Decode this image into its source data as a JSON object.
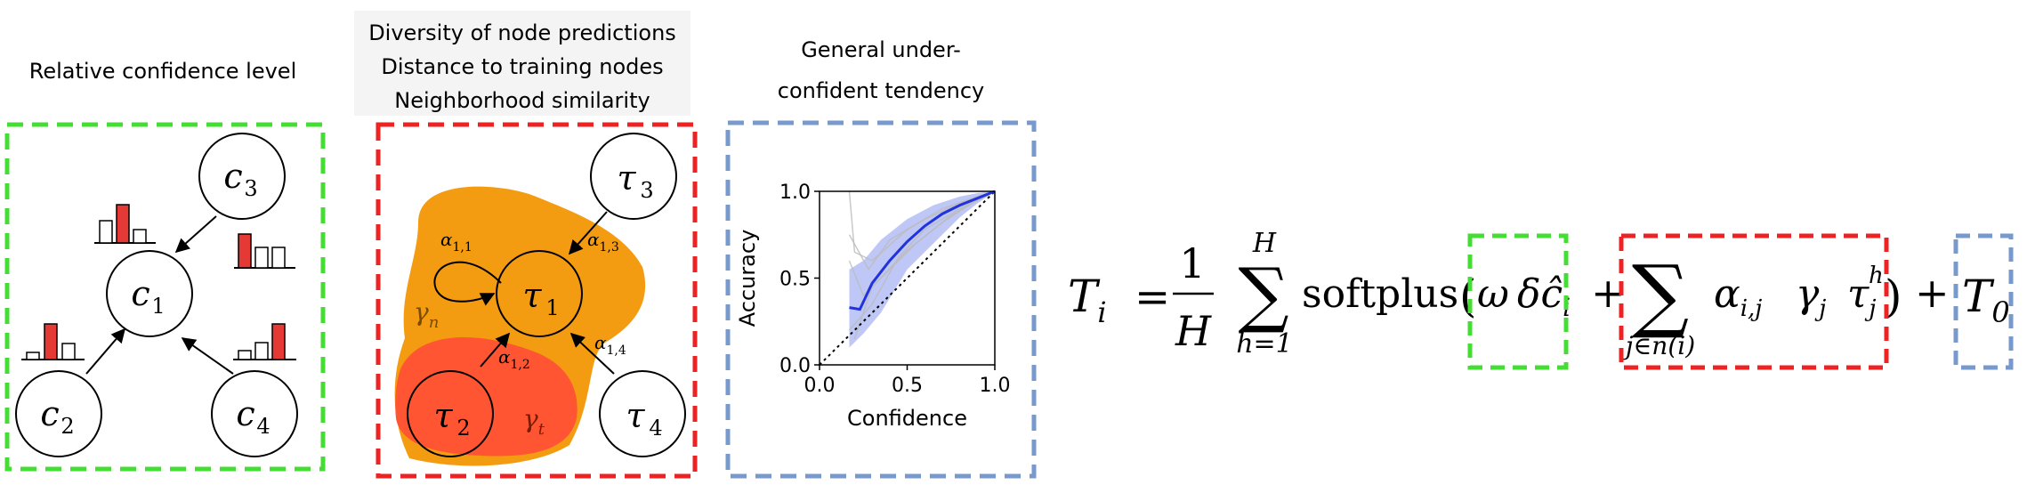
{
  "panel1": {
    "title": "Relative confidence level",
    "box_color": "#44dd33",
    "nodes": [
      {
        "base": "c",
        "sub": "1"
      },
      {
        "base": "c",
        "sub": "2"
      },
      {
        "base": "c",
        "sub": "3"
      },
      {
        "base": "c",
        "sub": "4"
      }
    ],
    "bar_color": "#e53935"
  },
  "panel2": {
    "title_lines": [
      "Diversity of node predictions",
      "Distance to training nodes",
      "Neighborhood similarity"
    ],
    "box_color": "#ee2222",
    "nodes": [
      {
        "base": "τ",
        "sub": "1"
      },
      {
        "base": "τ",
        "sub": "2"
      },
      {
        "base": "τ",
        "sub": "3"
      },
      {
        "base": "τ",
        "sub": "4"
      }
    ],
    "edge_labels": [
      "α",
      "1,1",
      "α",
      "1,3",
      "α",
      "1,2",
      "α",
      "1,4"
    ],
    "region_labels": {
      "outer": "γ",
      "outer_sub": "n",
      "inner": "γ",
      "inner_sub": "t"
    },
    "outer_color": "#f39c12",
    "inner_color": "#ff5533"
  },
  "panel3": {
    "title_lines": [
      "General under-",
      "confident tendency"
    ],
    "box_color": "#7799cc"
  },
  "chart_data": {
    "type": "line",
    "xlabel": "Confidence",
    "ylabel": "Accuracy",
    "xlim": [
      0.0,
      1.0
    ],
    "ylim": [
      0.0,
      1.0
    ],
    "xticks": [
      "0.0",
      "0.5",
      "1.0"
    ],
    "yticks": [
      "0.0",
      "0.5",
      "1.0"
    ],
    "mean_curve": {
      "x": [
        0.17,
        0.23,
        0.3,
        0.4,
        0.5,
        0.6,
        0.7,
        0.8,
        0.9,
        1.0
      ],
      "y": [
        0.33,
        0.32,
        0.47,
        0.6,
        0.71,
        0.8,
        0.87,
        0.92,
        0.96,
        1.0
      ],
      "color": "#2233dd"
    },
    "band_upper": {
      "x": [
        0.17,
        0.25,
        0.35,
        0.5,
        0.65,
        0.8,
        0.9,
        1.0
      ],
      "y": [
        0.55,
        0.6,
        0.72,
        0.84,
        0.92,
        0.97,
        0.99,
        1.0
      ]
    },
    "band_lower": {
      "x": [
        0.17,
        0.25,
        0.35,
        0.5,
        0.65,
        0.8,
        0.9,
        1.0
      ],
      "y": [
        0.1,
        0.18,
        0.3,
        0.55,
        0.7,
        0.85,
        0.93,
        1.0
      ]
    },
    "grey_curves": [
      {
        "x": [
          0.17,
          0.2,
          0.3,
          0.5,
          0.7,
          0.9,
          1.0
        ],
        "y": [
          1.0,
          0.65,
          0.6,
          0.78,
          0.9,
          0.97,
          1.0
        ]
      },
      {
        "x": [
          0.17,
          0.25,
          0.4,
          0.55,
          0.75,
          0.9,
          1.0
        ],
        "y": [
          0.6,
          0.4,
          0.55,
          0.7,
          0.86,
          0.95,
          1.0
        ]
      },
      {
        "x": [
          0.17,
          0.3,
          0.45,
          0.6,
          0.8,
          1.0
        ],
        "y": [
          0.2,
          0.35,
          0.62,
          0.78,
          0.9,
          1.0
        ]
      },
      {
        "x": [
          0.17,
          0.28,
          0.4,
          0.6,
          0.8,
          1.0
        ],
        "y": [
          0.75,
          0.55,
          0.72,
          0.84,
          0.93,
          1.0
        ]
      },
      {
        "x": [
          0.2,
          0.3,
          0.5,
          0.7,
          0.85,
          1.0
        ],
        "y": [
          0.15,
          0.45,
          0.66,
          0.82,
          0.92,
          1.0
        ]
      }
    ],
    "diagonal": {
      "x": [
        0.0,
        1.0
      ],
      "y": [
        0.0,
        1.0
      ]
    }
  },
  "formula": {
    "lhs_base": "T",
    "lhs_sub": "i",
    "eq": "=",
    "frac_num": "1",
    "frac_den": "H",
    "sum1_top": "H",
    "sum1_bottom": "h=1",
    "fn": "softplus",
    "lparen": "(",
    "omega": "ω",
    "delta": "δ",
    "c_hat": "ĉ",
    "c_sub": "i",
    "plus1": "+",
    "sum2_bottom": "j∈n(i)",
    "alpha": "α",
    "alpha_sub": "i,j",
    "gamma": "γ",
    "gamma_sub": "j",
    "tau": "τ",
    "tau_sub": "j",
    "tau_sup": "h",
    "rparen": ")",
    "plus2": "+",
    "t0_base": "T",
    "t0_sub": "0"
  }
}
